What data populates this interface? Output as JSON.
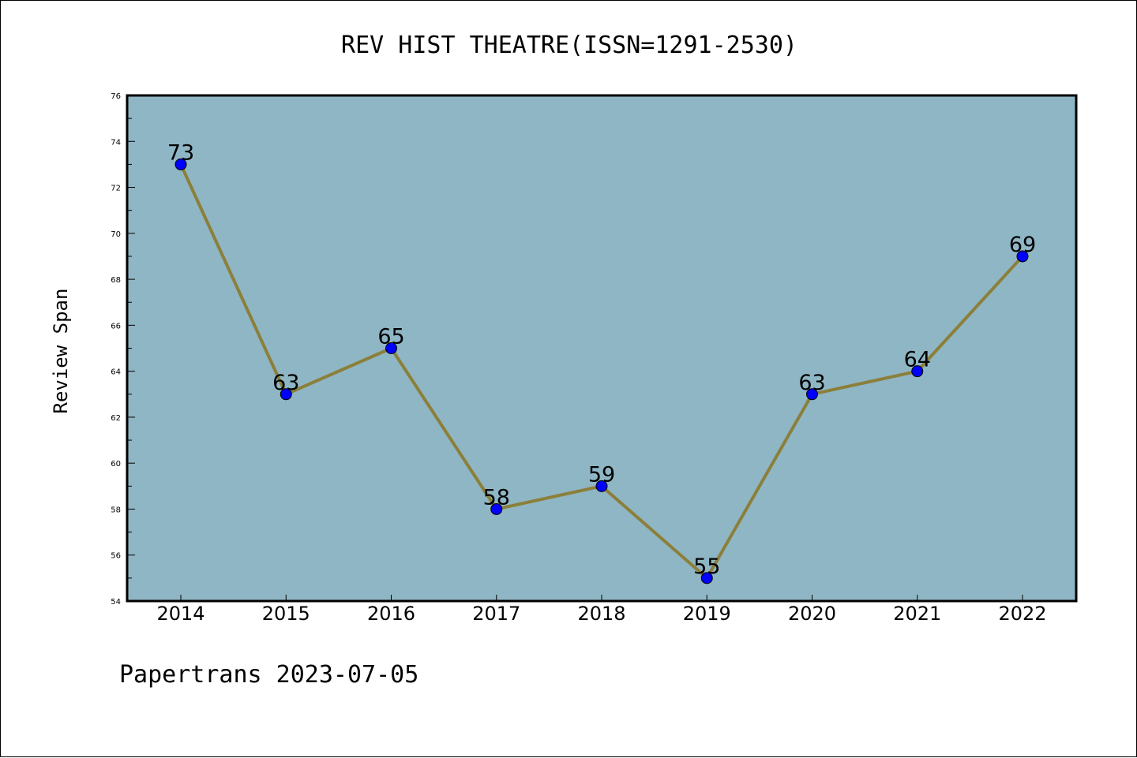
{
  "chart_data": {
    "type": "line",
    "title": "REV HIST THEATRE(ISSN=1291-2530)",
    "xlabel": "",
    "ylabel": "Review Span",
    "x": [
      "2014",
      "2015",
      "2016",
      "2017",
      "2018",
      "2019",
      "2020",
      "2021",
      "2022"
    ],
    "series": [
      {
        "values": [
          73,
          63,
          65,
          58,
          59,
          55,
          63,
          64,
          69
        ]
      }
    ],
    "data_labels": [
      "73",
      "63",
      "65",
      "58",
      "59",
      "55",
      "63",
      "64",
      "69"
    ],
    "ylim": [
      54,
      76
    ],
    "yticks": [
      "54",
      "56",
      "58",
      "60",
      "62",
      "64",
      "66",
      "68",
      "70",
      "72",
      "74",
      "76"
    ],
    "grid": false,
    "colors": {
      "plot_background": "#8fb6c4",
      "line": "#8b7f3a",
      "marker": "#0000ff"
    }
  },
  "footer": "Papertrans 2023-07-05"
}
